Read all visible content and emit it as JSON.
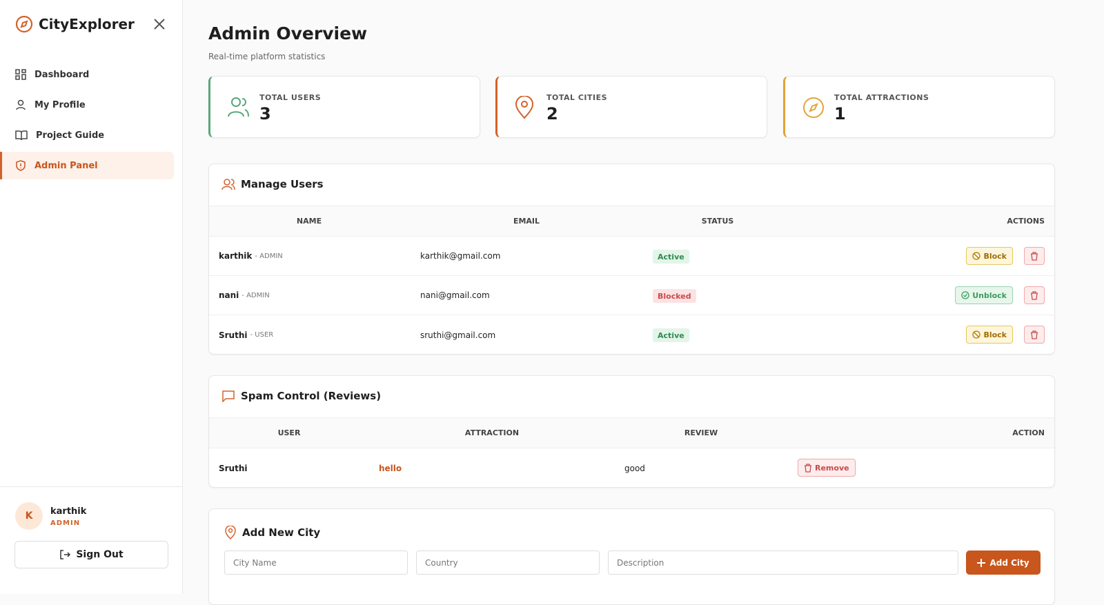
{
  "sidebar": {
    "brand": "CityExplorer",
    "nav": [
      "Dashboard",
      "My Profile",
      "Project Guide",
      "Admin Panel"
    ],
    "user": {
      "initial": "K",
      "name": "karthik",
      "role": "ADMIN"
    },
    "sign_out": "Sign Out"
  },
  "header": {
    "title": "Admin Overview",
    "subtitle": "Real-time platform statistics"
  },
  "stats": [
    {
      "label": "TOTAL USERS",
      "value": "3"
    },
    {
      "label": "TOTAL CITIES",
      "value": "2"
    },
    {
      "label": "TOTAL ATTRACTIONS",
      "value": "1"
    }
  ],
  "users": {
    "title": "Manage Users",
    "columns": [
      "NAME",
      "EMAIL",
      "STATUS",
      "ACTIONS"
    ],
    "rows": [
      {
        "name": "karthik",
        "role": "- ADMIN",
        "email": "karthik@gmail.com",
        "status": "Active",
        "action": "Block"
      },
      {
        "name": "nani",
        "role": "- ADMIN",
        "email": "nani@gmail.com",
        "status": "Blocked",
        "action": "Unblock"
      },
      {
        "name": "Sruthi",
        "role": "- USER",
        "email": "sruthi@gmail.com",
        "status": "Active",
        "action": "Block"
      }
    ]
  },
  "spam": {
    "title": "Spam Control (Reviews)",
    "columns": [
      "USER",
      "ATTRACTION",
      "REVIEW",
      "ACTION"
    ],
    "rows": [
      {
        "user": "Sruthi",
        "attraction": "hello",
        "review": "good",
        "action": "Remove"
      }
    ]
  },
  "add_city": {
    "title": "Add New City",
    "fields": [
      "City Name",
      "Country",
      "Description"
    ],
    "button": "Add City"
  }
}
